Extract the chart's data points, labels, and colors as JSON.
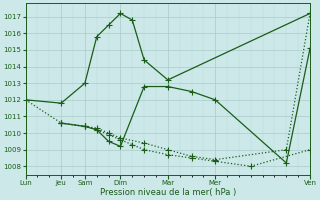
{
  "background_color": "#cce8e8",
  "grid_major_color": "#aacccc",
  "grid_minor_color": "#bbdddd",
  "line_color": "#1a5c1a",
  "xlabel": "Pression niveau de la mer( hPa )",
  "ylim": [
    1007.5,
    1017.8
  ],
  "yticks": [
    1008,
    1009,
    1010,
    1011,
    1012,
    1013,
    1014,
    1015,
    1016,
    1017
  ],
  "xlim": [
    0,
    24
  ],
  "major_xtick_positions": [
    0,
    3,
    5,
    8,
    12,
    16,
    24
  ],
  "major_xtick_labels": [
    "Lun",
    "Jeu",
    "Sam",
    "Dim",
    "Mar",
    "Mer",
    "Ven"
  ],
  "line1_x": [
    0,
    3,
    5,
    6,
    7,
    8,
    9,
    10,
    12,
    24
  ],
  "line1_y": [
    1012.0,
    1011.8,
    1013.0,
    1015.8,
    1016.5,
    1017.2,
    1016.8,
    1014.4,
    1013.2,
    1017.2
  ],
  "line1_solid": true,
  "line2_x": [
    3,
    5,
    6,
    7,
    8,
    9,
    10,
    12,
    14,
    16,
    19,
    24
  ],
  "line2_y": [
    1010.6,
    1010.4,
    1010.2,
    1009.9,
    1009.6,
    1009.3,
    1009.0,
    1008.7,
    1008.5,
    1008.3,
    1008.0,
    1009.0
  ],
  "line2_solid": false,
  "line3_x": [
    3,
    5,
    6,
    7,
    8,
    10,
    12,
    14,
    16,
    22,
    24
  ],
  "line3_y": [
    1010.6,
    1010.4,
    1010.2,
    1009.5,
    1009.2,
    1012.8,
    1012.8,
    1012.5,
    1012.0,
    1008.2,
    1015.1
  ],
  "line3_solid": true,
  "line4_x": [
    0,
    3,
    5,
    6,
    7,
    8,
    10,
    12,
    14,
    16,
    22,
    24
  ],
  "line4_y": [
    1012.0,
    1010.6,
    1010.4,
    1010.3,
    1010.0,
    1009.7,
    1009.4,
    1009.0,
    1008.6,
    1008.4,
    1009.0,
    1017.2
  ],
  "line4_solid": false
}
